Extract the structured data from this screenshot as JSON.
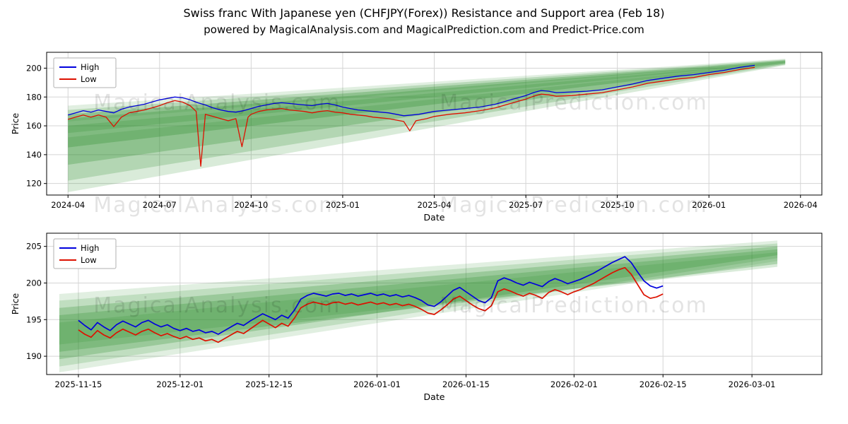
{
  "title": "Swiss franc With Japanese yen (CHFJPY(Forex)) Resistance and Support area (Feb 18)",
  "subtitle": "powered by MagicalAnalysis.com and MagicalPrediction.com and Predict-Price.com",
  "watermarks": [
    "MagicalAnalysis.com",
    "MagicalPrediction.com"
  ],
  "colors": {
    "high": "#0000dd",
    "low": "#dd1100",
    "band": "#2d8f2d",
    "grid": "#d5d5d5",
    "spine": "#000000"
  },
  "chart_data": [
    {
      "type": "line",
      "title": "",
      "xlabel": "Date",
      "ylabel": "Price",
      "legend_position": "upper-left",
      "grid": true,
      "xlim": [
        -0.7,
        24.7
      ],
      "ylim": [
        112,
        211
      ],
      "y_ticks": [
        120,
        140,
        160,
        180,
        200
      ],
      "x_ticks": [
        {
          "v": 0,
          "label": "2024-04"
        },
        {
          "v": 3,
          "label": "2024-07"
        },
        {
          "v": 6,
          "label": "2024-10"
        },
        {
          "v": 9,
          "label": "2025-01"
        },
        {
          "v": 12,
          "label": "2025-04"
        },
        {
          "v": 15,
          "label": "2025-07"
        },
        {
          "v": 18,
          "label": "2025-10"
        },
        {
          "v": 21,
          "label": "2026-01"
        },
        {
          "v": 24,
          "label": "2026-04"
        }
      ],
      "series": [
        {
          "name": "High",
          "color": "high",
          "x": [
            0,
            0.25,
            0.5,
            0.75,
            1,
            1.25,
            1.5,
            1.75,
            2,
            2.25,
            2.5,
            2.75,
            3,
            3.25,
            3.5,
            3.75,
            4,
            4.25,
            4.5,
            4.75,
            5,
            5.25,
            5.5,
            5.75,
            6,
            6.25,
            6.5,
            6.75,
            7,
            7.25,
            7.5,
            7.75,
            8,
            8.25,
            8.5,
            8.75,
            9,
            9.25,
            9.5,
            9.75,
            10,
            10.25,
            10.5,
            10.75,
            11,
            11.25,
            11.5,
            11.75,
            12,
            12.25,
            12.5,
            12.75,
            13,
            13.5,
            14,
            14.5,
            15,
            15.25,
            15.5,
            15.75,
            16,
            16.5,
            17,
            17.5,
            18,
            18.5,
            19,
            19.5,
            20,
            20.5,
            21,
            21.5,
            22,
            22.5
          ],
          "y": [
            167.5,
            169,
            170.5,
            169.5,
            171,
            170,
            169,
            171.5,
            173,
            174,
            175,
            176.5,
            178,
            179,
            180,
            179.5,
            178,
            176,
            174.5,
            172.5,
            171,
            170,
            169.5,
            170.5,
            172,
            173.5,
            174.5,
            175.5,
            176,
            175.5,
            175,
            174.5,
            174,
            175,
            175.5,
            174.5,
            173,
            172,
            171,
            170.5,
            170,
            169.5,
            169,
            168,
            167,
            167.5,
            168,
            169,
            170,
            170.5,
            171,
            171.5,
            172,
            173,
            175,
            178,
            181,
            183,
            184.5,
            184,
            183,
            183.5,
            184,
            185,
            187,
            189,
            191.5,
            193,
            194.5,
            195.5,
            197,
            198.5,
            200.5,
            202
          ]
        },
        {
          "name": "Low",
          "color": "low",
          "x": [
            0,
            0.25,
            0.5,
            0.75,
            1,
            1.25,
            1.5,
            1.75,
            2,
            2.25,
            2.5,
            2.75,
            3,
            3.25,
            3.5,
            3.75,
            4,
            4.2,
            4.35,
            4.5,
            4.75,
            5,
            5.25,
            5.5,
            5.7,
            5.9,
            6,
            6.25,
            6.5,
            6.75,
            7,
            7.25,
            7.5,
            7.75,
            8,
            8.25,
            8.5,
            8.75,
            9,
            9.25,
            9.5,
            9.75,
            10,
            10.25,
            10.5,
            10.75,
            11,
            11.2,
            11.4,
            11.75,
            12,
            12.5,
            13,
            13.5,
            14,
            14.5,
            15,
            15.25,
            15.5,
            15.75,
            16,
            16.5,
            17,
            17.5,
            18,
            18.5,
            19,
            19.5,
            20,
            20.5,
            21,
            21.5,
            22,
            22.5
          ],
          "y": [
            164.5,
            166,
            167.5,
            166,
            167.5,
            166,
            159.5,
            166,
            169,
            170,
            171,
            172.5,
            174,
            176,
            177.5,
            176.5,
            174,
            170,
            132,
            168,
            166.5,
            165,
            163.5,
            165,
            145.5,
            166,
            168,
            170,
            171,
            171.5,
            172,
            171,
            170.5,
            170,
            169,
            170,
            170.5,
            169.5,
            169,
            168,
            167.5,
            167,
            166,
            165.5,
            165,
            164,
            163,
            156.5,
            163.5,
            165,
            166.5,
            168,
            169,
            170.5,
            172.5,
            175.5,
            178.5,
            180.5,
            182,
            181.5,
            180.5,
            181,
            182,
            183,
            185,
            187,
            189.5,
            191,
            192.5,
            193.5,
            195.5,
            197,
            199,
            200.5
          ]
        }
      ],
      "bands": [
        {
          "x0": 0,
          "x1": 23.5,
          "top0": 152,
          "top1": 204.0,
          "bot0": 114,
          "bot1": 202.0,
          "o": 0.18
        },
        {
          "x0": 0,
          "x1": 23.5,
          "top0": 160,
          "top1": 204.5,
          "bot0": 122,
          "bot1": 202.5,
          "o": 0.22
        },
        {
          "x0": 0,
          "x1": 23.5,
          "top0": 165,
          "top1": 205.0,
          "bot0": 133,
          "bot1": 203.0,
          "o": 0.28
        },
        {
          "x0": 0,
          "x1": 23.5,
          "top0": 168,
          "top1": 205.5,
          "bot0": 145,
          "bot1": 203.5,
          "o": 0.3
        },
        {
          "x0": 0,
          "x1": 23.5,
          "top0": 171,
          "top1": 206.0,
          "bot0": 155,
          "bot1": 204.0,
          "o": 0.22
        },
        {
          "x0": 0,
          "x1": 23.5,
          "top0": 174,
          "top1": 206.5,
          "bot0": 163,
          "bot1": 204.5,
          "o": 0.14
        }
      ]
    },
    {
      "type": "line",
      "title": "",
      "xlabel": "Date",
      "ylabel": "Price",
      "legend_position": "upper-left",
      "grid": true,
      "xlim": [
        -5,
        117
      ],
      "ylim": [
        187.5,
        206.8
      ],
      "y_ticks": [
        190,
        195,
        200,
        205
      ],
      "x_ticks": [
        {
          "v": 0,
          "label": "2025-11-15"
        },
        {
          "v": 16,
          "label": "2025-12-01"
        },
        {
          "v": 30,
          "label": "2025-12-15"
        },
        {
          "v": 47,
          "label": "2026-01-01"
        },
        {
          "v": 61,
          "label": "2026-01-15"
        },
        {
          "v": 78,
          "label": "2026-02-01"
        },
        {
          "v": 92,
          "label": "2026-02-15"
        },
        {
          "v": 106,
          "label": "2026-03-01"
        }
      ],
      "series": [
        {
          "name": "High",
          "color": "high",
          "x0": 0,
          "dx": 1,
          "y": [
            194.9,
            194.2,
            193.6,
            194.6,
            194.0,
            193.5,
            194.3,
            194.8,
            194.4,
            194.0,
            194.6,
            194.9,
            194.4,
            194.0,
            194.3,
            193.8,
            193.5,
            193.8,
            193.4,
            193.6,
            193.2,
            193.4,
            193.0,
            193.5,
            194.0,
            194.5,
            194.2,
            194.8,
            195.3,
            195.8,
            195.4,
            195.0,
            195.6,
            195.2,
            196.3,
            197.8,
            198.3,
            198.6,
            198.4,
            198.2,
            198.5,
            198.6,
            198.3,
            198.5,
            198.2,
            198.4,
            198.6,
            198.3,
            198.5,
            198.2,
            198.4,
            198.1,
            198.3,
            198.0,
            197.6,
            197.0,
            196.8,
            197.4,
            198.2,
            199.0,
            199.4,
            198.8,
            198.2,
            197.6,
            197.3,
            198.0,
            200.3,
            200.7,
            200.4,
            200.0,
            199.7,
            200.1,
            199.8,
            199.5,
            200.2,
            200.6,
            200.3,
            199.9,
            200.2,
            200.5,
            200.9,
            201.3,
            201.8,
            202.3,
            202.8,
            203.2,
            203.6,
            202.8,
            201.5,
            200.3,
            199.6,
            199.3,
            199.6
          ]
        },
        {
          "name": "Low",
          "color": "low",
          "x0": 0,
          "dx": 1,
          "y": [
            193.6,
            193.0,
            192.6,
            193.5,
            192.9,
            192.5,
            193.2,
            193.7,
            193.3,
            192.9,
            193.4,
            193.7,
            193.2,
            192.8,
            193.1,
            192.7,
            192.4,
            192.7,
            192.3,
            192.5,
            192.1,
            192.3,
            191.9,
            192.4,
            192.9,
            193.4,
            193.1,
            193.7,
            194.3,
            194.9,
            194.4,
            193.9,
            194.5,
            194.1,
            195.2,
            196.6,
            197.1,
            197.4,
            197.2,
            197.0,
            197.3,
            197.4,
            197.1,
            197.3,
            197.0,
            197.2,
            197.4,
            197.1,
            197.3,
            197.0,
            197.2,
            196.9,
            197.1,
            196.8,
            196.4,
            195.9,
            195.7,
            196.3,
            197.0,
            197.8,
            198.2,
            197.6,
            197.0,
            196.5,
            196.2,
            196.9,
            198.8,
            199.2,
            198.9,
            198.5,
            198.2,
            198.6,
            198.3,
            197.9,
            198.7,
            199.1,
            198.8,
            198.4,
            198.8,
            199.1,
            199.5,
            199.9,
            200.4,
            200.9,
            201.4,
            201.8,
            202.1,
            201.2,
            199.8,
            198.4,
            197.9,
            198.1,
            198.5
          ]
        }
      ],
      "bands": [
        {
          "x0": -3,
          "x1": 110,
          "top0": 198.5,
          "top1": 205.8,
          "bot0": 187.8,
          "bot1": 203.0,
          "o": 0.14
        },
        {
          "x0": -3,
          "x1": 110,
          "top0": 197.6,
          "top1": 205.4,
          "bot0": 188.6,
          "bot1": 203.4,
          "o": 0.18
        },
        {
          "x0": -3,
          "x1": 110,
          "top0": 196.6,
          "top1": 205.0,
          "bot0": 189.6,
          "bot1": 203.8,
          "o": 0.26
        },
        {
          "x0": -3,
          "x1": 110,
          "top0": 195.6,
          "top1": 204.6,
          "bot0": 190.6,
          "bot1": 202.6,
          "o": 0.26
        },
        {
          "x0": -3,
          "x1": 110,
          "top0": 194.6,
          "top1": 204.2,
          "bot0": 191.6,
          "bot1": 202.2,
          "o": 0.18
        }
      ]
    }
  ]
}
